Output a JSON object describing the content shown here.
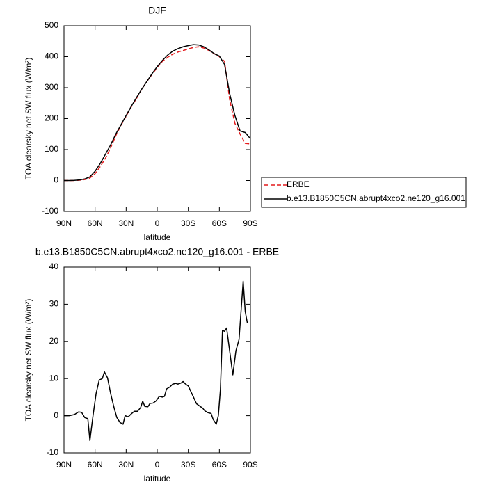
{
  "chart_data": [
    {
      "type": "line",
      "title": "DJF",
      "xlabel": "latitude",
      "ylabel": "TOA clearsky net SW flux (W/m²)",
      "x": [
        90,
        85,
        80,
        75,
        70,
        65,
        60,
        55,
        50,
        45,
        40,
        35,
        30,
        25,
        20,
        15,
        10,
        5,
        0,
        -5,
        -10,
        -15,
        -20,
        -25,
        -30,
        -35,
        -40,
        -45,
        -50,
        -55,
        -60,
        -65,
        -70,
        -75,
        -80,
        -85,
        -90
      ],
      "series": [
        {
          "name": "ERBE",
          "color": "#e41a1c",
          "line_style": "dashed",
          "values": [
            0,
            0,
            0,
            1,
            3,
            8,
            22,
            45,
            72,
            105,
            145,
            178,
            208,
            238,
            265,
            295,
            320,
            343,
            365,
            385,
            398,
            408,
            415,
            420,
            425,
            430,
            432,
            428,
            420,
            410,
            400,
            385,
            260,
            185,
            150,
            120,
            118
          ]
        },
        {
          "name": "b.e13.B1850C5CN.abrupt4xco2.ne120_g16.001",
          "color": "#000000",
          "line_style": "solid",
          "values": [
            0,
            0,
            0.5,
            2,
            5,
            12,
            30,
            55,
            85,
            115,
            150,
            180,
            210,
            240,
            268,
            295,
            320,
            345,
            368,
            388,
            405,
            418,
            426,
            432,
            436,
            439,
            438,
            432,
            422,
            410,
            402,
            375,
            280,
            210,
            160,
            155,
            135
          ]
        }
      ],
      "xlim": [
        90,
        -90
      ],
      "xticks": [
        {
          "value": 90,
          "label": "90N"
        },
        {
          "value": 60,
          "label": "60N"
        },
        {
          "value": 30,
          "label": "30N"
        },
        0,
        {
          "value": -30,
          "label": "30S"
        },
        {
          "value": -60,
          "label": "60S"
        },
        {
          "value": -90,
          "label": "90S"
        }
      ],
      "ylim": [
        -100,
        500
      ],
      "yticks": [
        -100,
        0,
        100,
        200,
        300,
        400,
        500
      ],
      "legend_position": "right"
    },
    {
      "type": "line",
      "title": "b.e13.B1850C5CN.abrupt4xco2.ne120_g16.001 - ERBE",
      "xlabel": "latitude",
      "ylabel": "TOA clearsky net SW flux (W/m²)",
      "x": [
        90,
        85,
        80,
        76,
        73,
        70,
        67,
        65,
        62,
        59,
        56,
        53,
        51,
        48,
        45,
        42,
        39,
        36,
        33,
        31,
        28,
        25,
        22,
        19,
        16,
        14,
        12,
        9,
        7,
        4,
        1,
        -2,
        -5,
        -7,
        -9,
        -12,
        -15,
        -18,
        -20,
        -23,
        -25,
        -27,
        -30,
        -33,
        -36,
        -38,
        -41,
        -44,
        -46,
        -49,
        -52,
        -54,
        -57,
        -59,
        -61,
        -63,
        -65,
        -67,
        -73,
        -76,
        -79,
        -83,
        -85,
        -87
      ],
      "color": "#000000",
      "values": [
        0,
        0,
        0.3,
        1,
        0.9,
        -0.5,
        -0.8,
        -6.7,
        0,
        6,
        9.6,
        10,
        11.8,
        10.2,
        6,
        2.5,
        -0.5,
        -1.8,
        -2.3,
        0,
        -0.3,
        0.5,
        1.2,
        1.2,
        2.2,
        3.9,
        2.5,
        2.4,
        3.3,
        3.4,
        4,
        5.2,
        5,
        5.2,
        7.2,
        7.7,
        8.5,
        8.7,
        8.5,
        8.8,
        9.2,
        8.6,
        8,
        6.2,
        4.4,
        3.2,
        2.6,
        2,
        1.3,
        0.8,
        0.6,
        -1,
        -2.3,
        0,
        7,
        23,
        22.7,
        23.6,
        11,
        17.5,
        20.5,
        36.2,
        28,
        25
      ],
      "xlim": [
        90,
        -90
      ],
      "xticks": [
        {
          "value": 90,
          "label": "90N"
        },
        {
          "value": 60,
          "label": "60N"
        },
        {
          "value": 30,
          "label": "30N"
        },
        0,
        {
          "value": -30,
          "label": "30S"
        },
        {
          "value": -60,
          "label": "60S"
        },
        {
          "value": -90,
          "label": "90S"
        }
      ],
      "ylim": [
        -10,
        40
      ],
      "yticks": [
        -10,
        0,
        10,
        20,
        30,
        40
      ]
    }
  ]
}
